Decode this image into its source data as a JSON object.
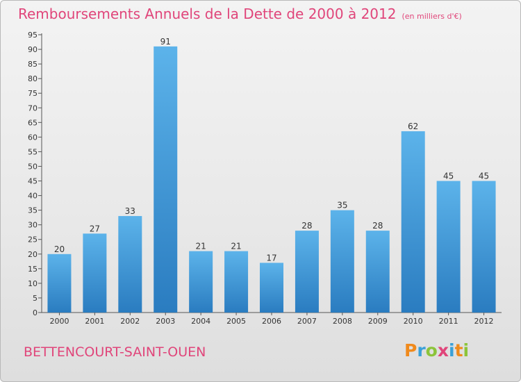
{
  "title": "Remboursements Annuels de la Dette de 2000 à 2012",
  "subtitle": "(en milliers d'€)",
  "commune": "BETTENCOURT-SAINT-OUEN",
  "logo": "Proxiti",
  "colors": {
    "accent": "#e0457a",
    "bar": "#3d8fd0"
  },
  "chart_data": {
    "type": "bar",
    "categories": [
      "2000",
      "2001",
      "2002",
      "2003",
      "2004",
      "2005",
      "2006",
      "2007",
      "2008",
      "2009",
      "2010",
      "2011",
      "2012"
    ],
    "values": [
      20,
      27,
      33,
      91,
      21,
      21,
      17,
      28,
      35,
      28,
      62,
      45,
      45
    ],
    "title": "Remboursements Annuels de la Dette de 2000 à 2012",
    "xlabel": "",
    "ylabel": "",
    "ylim": [
      0,
      95
    ],
    "yticks": [
      0,
      5,
      10,
      15,
      20,
      25,
      30,
      35,
      40,
      45,
      50,
      55,
      60,
      65,
      70,
      75,
      80,
      85,
      90,
      95
    ],
    "data_labels": true,
    "grid": false
  }
}
